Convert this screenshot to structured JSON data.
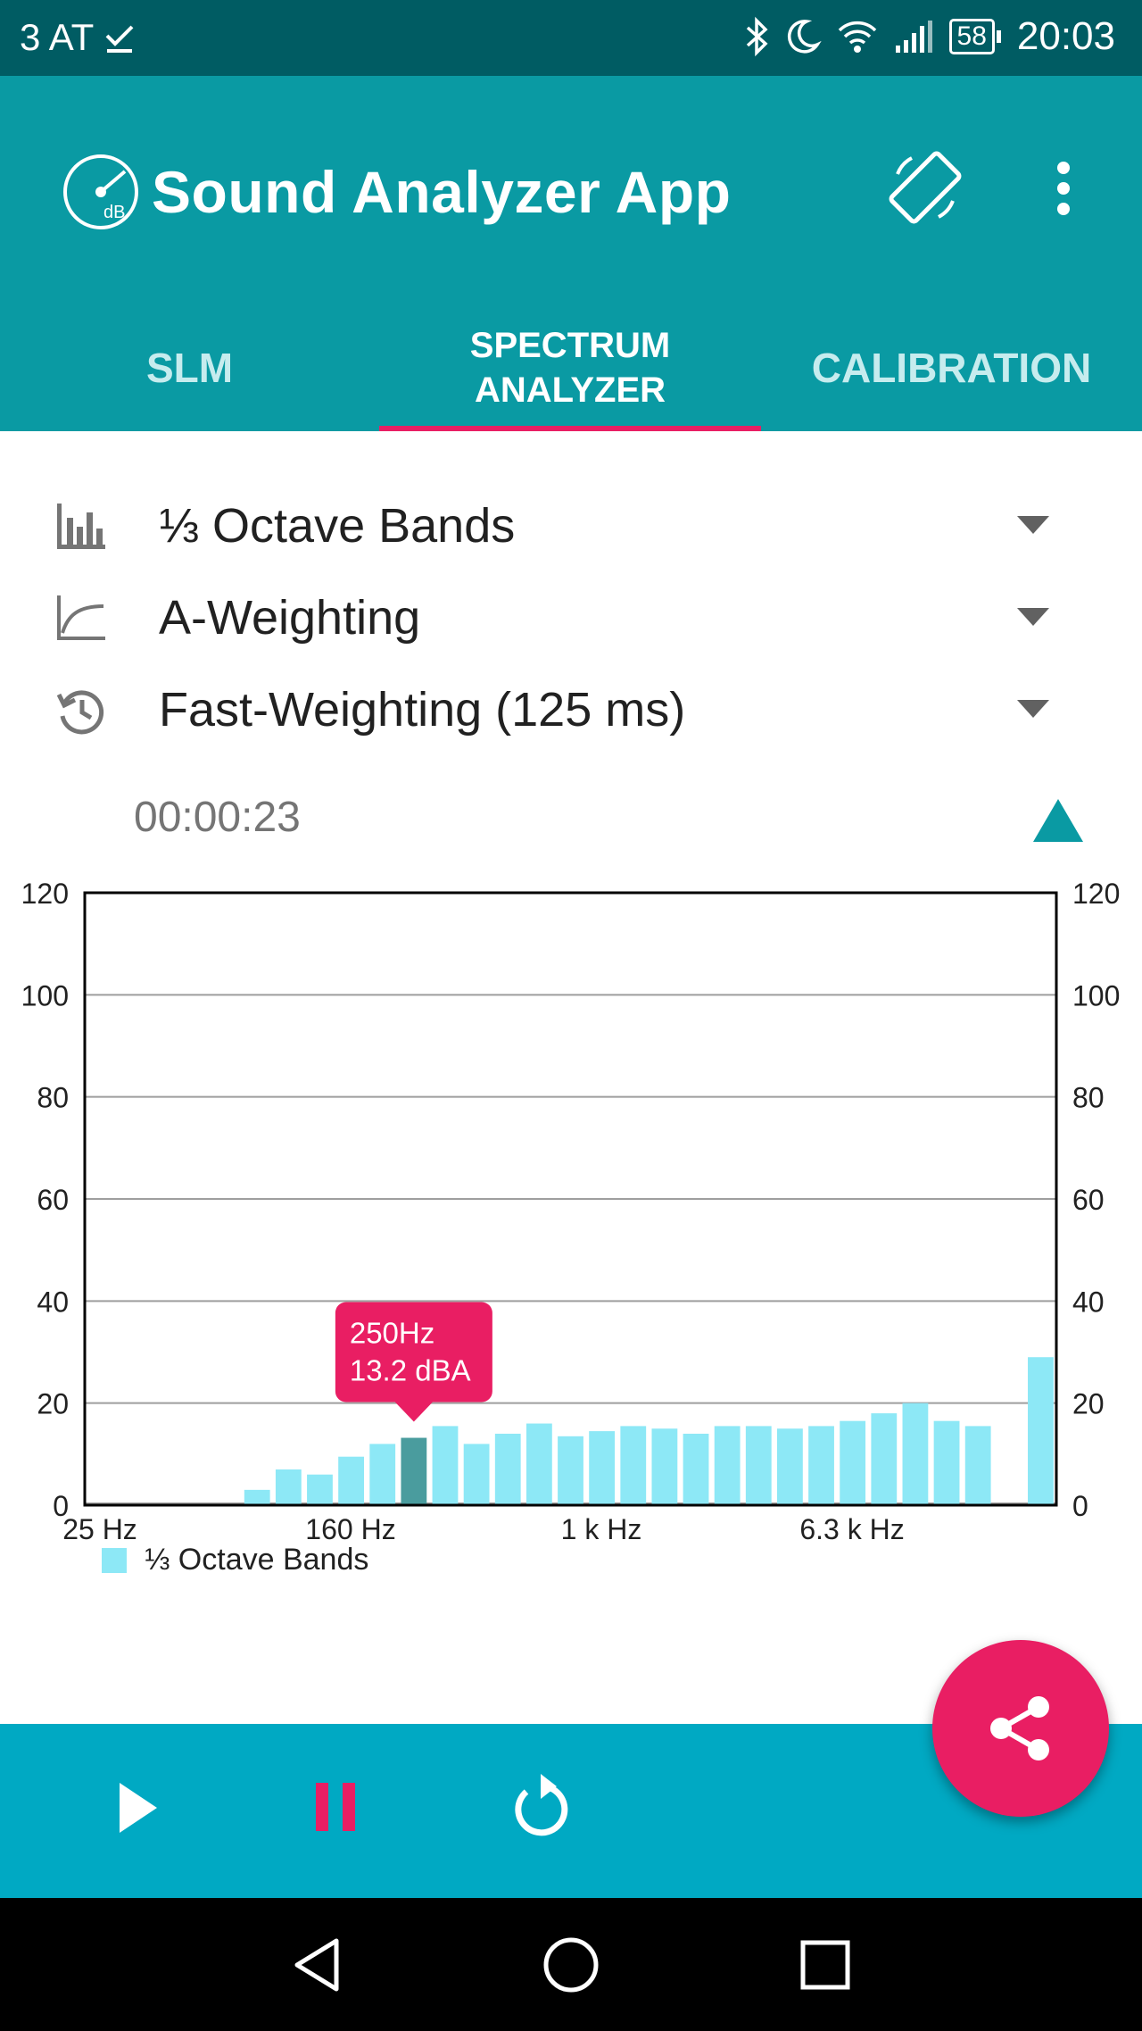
{
  "status_bar": {
    "carrier": "3 AT",
    "battery": "58",
    "time": "20:03"
  },
  "app_bar": {
    "title": "Sound Analyzer App",
    "logo_text": "dB"
  },
  "tabs": [
    {
      "label": "SLM",
      "active": false
    },
    {
      "label": "SPECTRUM ANALYZER",
      "active": true
    },
    {
      "label": "CALIBRATION",
      "active": false
    }
  ],
  "settings": {
    "bands": "⅓ Octave Bands",
    "frequency_weighting": "A-Weighting",
    "time_weighting": "Fast-Weighting (125 ms)"
  },
  "timer": "00:00:23",
  "chart_data": {
    "type": "bar",
    "ylim": [
      0,
      120
    ],
    "yticks": [
      0,
      20,
      40,
      60,
      80,
      100,
      120
    ],
    "x_tick_labels": [
      "25 Hz",
      "160 Hz",
      "1 k Hz",
      "6.3 k Hz"
    ],
    "legend": "⅓ Octave Bands",
    "legend_position": "bottom-left",
    "grid": true,
    "values": [
      0,
      0,
      0,
      0,
      0,
      3,
      7,
      6,
      9.5,
      12,
      13.2,
      15.5,
      12,
      14,
      16,
      13.5,
      14.5,
      15.5,
      15,
      14,
      15.5,
      15.5,
      15,
      15.5,
      16.5,
      18,
      20,
      16.5,
      15.5,
      0,
      29
    ],
    "highlighted_index": 10,
    "tooltip": {
      "line1": "250Hz",
      "line2": "13.2 dBA"
    },
    "colors": {
      "bar": "#8de8f6",
      "highlight": "#4a9c9e",
      "tooltip": "#e91e63"
    }
  },
  "colors": {
    "status_bar": "#005c63",
    "app_bar": "#0a9aa3",
    "accent": "#e91e63",
    "bottom_bar": "#00a9c3"
  },
  "controls": {
    "play": "play-icon",
    "pause": "pause-icon",
    "reset": "reset-icon",
    "share": "share-icon"
  }
}
